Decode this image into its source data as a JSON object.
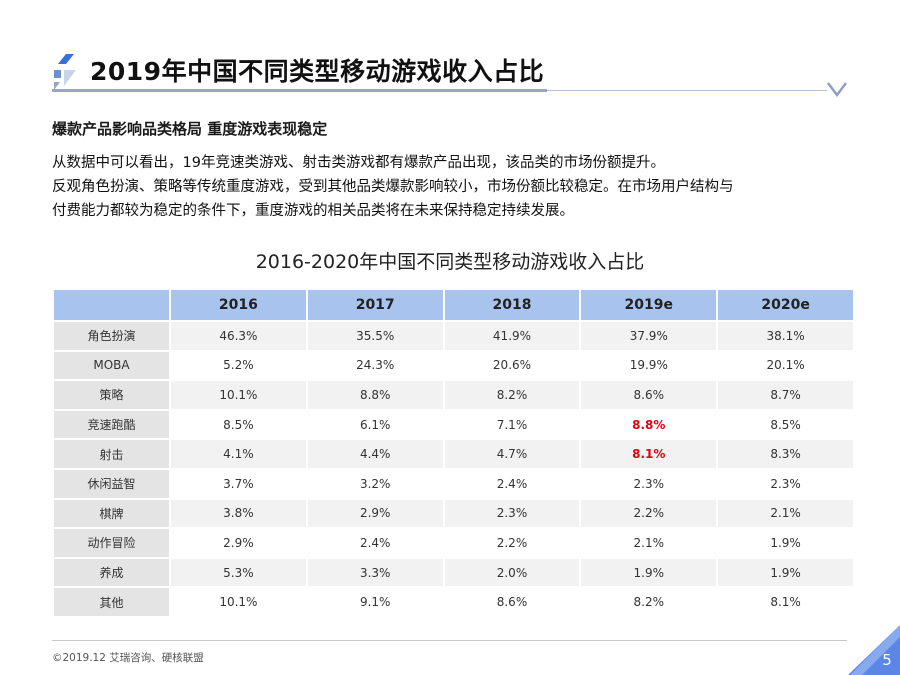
{
  "header": {
    "title": "2019年中国不同类型移动游戏收入占比",
    "accent_color": "#3a6fd8",
    "rule_color": "#9aa6c5"
  },
  "subtitle": "爆款产品影响品类格局 重度游戏表现稳定",
  "body_lines": [
    "从数据中可以看出，19年竞速类游戏、射击类游戏都有爆款产品出现，该品类的市场份额提升。",
    "反观角色扮演、策略等传统重度游戏，受到其他品类爆款影响较小，市场份额比较稳定。在市场用户结构与",
    "付费能力都较为稳定的条件下，重度游戏的相关品类将在未来保持稳定持续发展。"
  ],
  "table": {
    "caption": "2016-2020年中国不同类型移动游戏收入占比",
    "header_color": "#a7c3ee",
    "highlight_color": "#e60012",
    "columns": [
      "2016",
      "2017",
      "2018",
      "2019e",
      "2020e"
    ],
    "rows": [
      {
        "label": "角色扮演",
        "values": [
          "46.3%",
          "35.5%",
          "41.9%",
          "37.9%",
          "38.1%"
        ],
        "highlight": [
          false,
          false,
          false,
          false,
          false
        ]
      },
      {
        "label": "MOBA",
        "values": [
          "5.2%",
          "24.3%",
          "20.6%",
          "19.9%",
          "20.1%"
        ],
        "highlight": [
          false,
          false,
          false,
          false,
          false
        ]
      },
      {
        "label": "策略",
        "values": [
          "10.1%",
          "8.8%",
          "8.2%",
          "8.6%",
          "8.7%"
        ],
        "highlight": [
          false,
          false,
          false,
          false,
          false
        ]
      },
      {
        "label": "竞速跑酷",
        "values": [
          "8.5%",
          "6.1%",
          "7.1%",
          "8.8%",
          "8.5%"
        ],
        "highlight": [
          false,
          false,
          false,
          true,
          false
        ]
      },
      {
        "label": "射击",
        "values": [
          "4.1%",
          "4.4%",
          "4.7%",
          "8.1%",
          "8.3%"
        ],
        "highlight": [
          false,
          false,
          false,
          true,
          false
        ]
      },
      {
        "label": "休闲益智",
        "values": [
          "3.7%",
          "3.2%",
          "2.4%",
          "2.3%",
          "2.3%"
        ],
        "highlight": [
          false,
          false,
          false,
          false,
          false
        ]
      },
      {
        "label": "棋牌",
        "values": [
          "3.8%",
          "2.9%",
          "2.3%",
          "2.2%",
          "2.1%"
        ],
        "highlight": [
          false,
          false,
          false,
          false,
          false
        ]
      },
      {
        "label": "动作冒险",
        "values": [
          "2.9%",
          "2.4%",
          "2.2%",
          "2.1%",
          "1.9%"
        ],
        "highlight": [
          false,
          false,
          false,
          false,
          false
        ]
      },
      {
        "label": "养成",
        "values": [
          "5.3%",
          "3.3%",
          "2.0%",
          "1.9%",
          "1.9%"
        ],
        "highlight": [
          false,
          false,
          false,
          false,
          false
        ]
      },
      {
        "label": "其他",
        "values": [
          "10.1%",
          "9.1%",
          "8.6%",
          "8.2%",
          "8.1%"
        ],
        "highlight": [
          false,
          false,
          false,
          false,
          false
        ]
      }
    ]
  },
  "footer": {
    "source": "©2019.12  艾瑞咨询、硬核联盟",
    "page_number": "5",
    "corner_color": "#5b86e5"
  },
  "icons": [
    "logo-mark-icon",
    "chevron-down-icon"
  ]
}
